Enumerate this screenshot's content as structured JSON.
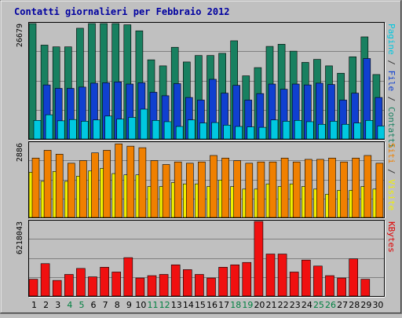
{
  "chart_data": {
    "type": "bar",
    "title": "Contatti giornalieri per Febbraio 2012",
    "categories": [
      "1",
      "2",
      "3",
      "4",
      "5",
      "6",
      "7",
      "8",
      "9",
      "10",
      "11",
      "12",
      "13",
      "14",
      "15",
      "16",
      "17",
      "18",
      "19",
      "20",
      "21",
      "22",
      "23",
      "24",
      "25",
      "26",
      "27",
      "28",
      "29",
      "30"
    ],
    "weekend_days": [
      "4",
      "5",
      "11",
      "12",
      "18",
      "19",
      "25",
      "26"
    ],
    "panels": [
      {
        "id": "top",
        "ymax_label": "26679",
        "ymax": 26679,
        "right_label_parts": [
          {
            "text": "Pagine",
            "color": "#00c8e0"
          },
          {
            "text": " / ",
            "color": "#333333"
          },
          {
            "text": "File",
            "color": "#1040d0"
          },
          {
            "text": " / ",
            "color": "#333333"
          },
          {
            "text": "Contatti",
            "color": "#188060"
          }
        ],
        "series": [
          {
            "name": "Contatti",
            "color": "#188060",
            "values": [
              26679,
              21700,
              21300,
              21300,
              25600,
              26679,
              26679,
              26679,
              26400,
              25000,
              18300,
              16900,
              21200,
              17800,
              19300,
              19300,
              19800,
              22700,
              14600,
              16500,
              21400,
              21900,
              20300,
              17700,
              18400,
              16900,
              15200,
              19000,
              23600,
              14900
            ]
          },
          {
            "name": "File",
            "color": "#1040d0",
            "values": [
              0,
              12500,
              11700,
              11700,
              12000,
              12900,
              13000,
              13200,
              12700,
              13000,
              10800,
              10000,
              12800,
              9600,
              9000,
              13800,
              10600,
              12400,
              9000,
              10500,
              12700,
              11500,
              12700,
              12500,
              12900,
              12600,
              9000,
              10600,
              18600,
              9600
            ]
          },
          {
            "name": "Pagine",
            "color": "#00c8e0",
            "values": [
              4300,
              5600,
              4200,
              4500,
              4100,
              4400,
              5300,
              4600,
              5000,
              6900,
              4300,
              4000,
              2900,
              4400,
              3700,
              3800,
              3200,
              2900,
              2800,
              2700,
              4400,
              4100,
              4300,
              4000,
              3400,
              4100,
              3400,
              3700,
              4300,
              3000
            ]
          }
        ]
      },
      {
        "id": "middle",
        "ymax_label": "2886",
        "ymax": 2886,
        "right_label_parts": [
          {
            "text": "Siti",
            "color": "#f08000"
          },
          {
            "text": " / ",
            "color": "#333333"
          },
          {
            "text": "Visite",
            "color": "#f0f000"
          }
        ],
        "series": [
          {
            "name": "Visite",
            "color": "#f0f000",
            "values": [
              1750,
              1400,
              1780,
              1400,
              1600,
              1800,
              1900,
              1700,
              1650,
              1650,
              1200,
              1200,
              1350,
              1300,
              1300,
              1200,
              1450,
              1200,
              1100,
              1100,
              1300,
              1200,
              1300,
              1200,
              1100,
              900,
              1050,
              1050,
              1200,
              1100
            ]
          },
          {
            "name": "Siti",
            "color": "#f08000",
            "values": [
              2300,
              2600,
              2450,
              2100,
              2200,
              2500,
              2600,
              2850,
              2760,
              2700,
              2200,
              2050,
              2150,
              2100,
              2150,
              2400,
              2300,
              2200,
              2100,
              2150,
              2150,
              2300,
              2150,
              2250,
              2250,
              2300,
              2150,
              2300,
              2400,
              2100
            ]
          }
        ]
      },
      {
        "id": "bottom",
        "ymax_label": "6218043",
        "ymax": 6218043,
        "right_label_parts": [
          {
            "text": "KBytes",
            "color": "#e00000"
          }
        ],
        "series": [
          {
            "name": "KBytes",
            "color": "#f01010",
            "values": [
              1400000,
              2700000,
              1300000,
              1800000,
              2300000,
              1600000,
              2400000,
              2000000,
              3200000,
              1500000,
              1700000,
              1800000,
              2600000,
              2200000,
              1800000,
              1500000,
              2400000,
              2600000,
              2800000,
              6218043,
              3500000,
              3500000,
              2000000,
              3000000,
              2500000,
              1700000,
              1500000,
              3100000,
              1400000,
              0
            ]
          }
        ]
      }
    ],
    "grid": true,
    "legend": "right"
  },
  "colors": {
    "background": "#c0c0c0",
    "title": "#0000a0",
    "weekday_tick": "#000000",
    "weekend_tick": "#008040"
  }
}
